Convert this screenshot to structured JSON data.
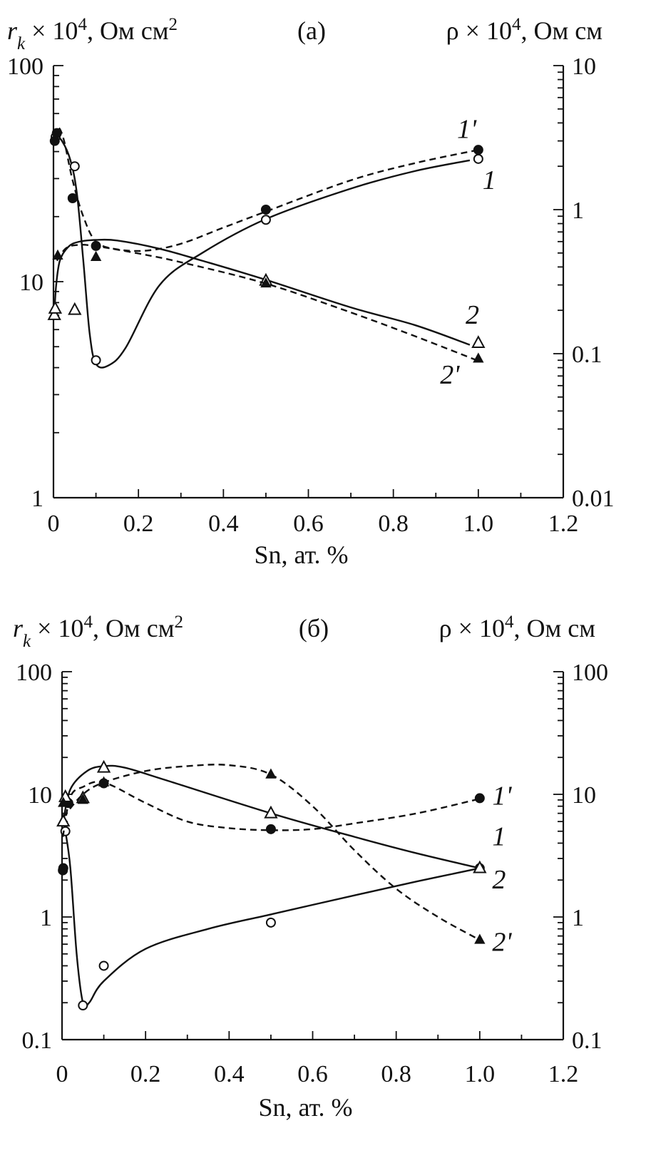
{
  "chart_data": [
    {
      "type": "scatter",
      "panel_label": "(а)",
      "ylabel_left": "r_k × 10^4, Ом см^2",
      "ylabel_right": "ρ × 10^4, Ом см",
      "xlabel": "Sn, ат. %",
      "xlim": [
        0,
        1.2
      ],
      "xticks": [
        "0",
        "0.2",
        "0.4",
        "0.6",
        "0.8",
        "1.0",
        "1.2"
      ],
      "ylim_left": [
        1,
        100
      ],
      "yscale_left": "log",
      "yticks_left": [
        "1",
        "10",
        "100"
      ],
      "ylim_right": [
        0.01,
        10
      ],
      "yscale_right": "log",
      "yticks_right": [
        "0.01",
        "0.1",
        "1",
        "10"
      ],
      "series": [
        {
          "name": "1",
          "label_text": "1",
          "label_at": [
            1.01,
            1.6
          ],
          "axis": "right",
          "marker": "open-circle",
          "line": "solid",
          "points": [
            [
              0.005,
              3.2
            ],
            [
              0.05,
              2.0
            ],
            [
              0.1,
              0.09
            ],
            [
              0.5,
              0.85
            ],
            [
              1.0,
              2.25
            ]
          ],
          "curve": [
            [
              0.003,
              3.3
            ],
            [
              0.02,
              3.0
            ],
            [
              0.04,
              2.2
            ],
            [
              0.055,
              1.3
            ],
            [
              0.07,
              0.45
            ],
            [
              0.085,
              0.14
            ],
            [
              0.1,
              0.085
            ],
            [
              0.13,
              0.083
            ],
            [
              0.17,
              0.11
            ],
            [
              0.25,
              0.3
            ],
            [
              0.35,
              0.5
            ],
            [
              0.5,
              0.86
            ],
            [
              0.7,
              1.4
            ],
            [
              0.85,
              1.85
            ],
            [
              0.98,
              2.2
            ]
          ]
        },
        {
          "name": "1'",
          "label_text": "1'",
          "label_at": [
            0.95,
            3.6
          ],
          "axis": "right",
          "marker": "filled-circle",
          "line": "dashed",
          "points": [
            [
              0.003,
              3.0
            ],
            [
              0.008,
              3.4
            ],
            [
              0.045,
              1.2
            ],
            [
              0.1,
              0.56
            ],
            [
              0.5,
              1.0
            ],
            [
              1.0,
              2.6
            ]
          ],
          "curve": [
            [
              0.003,
              3.2
            ],
            [
              0.012,
              3.7
            ],
            [
              0.025,
              3.0
            ],
            [
              0.045,
              1.6
            ],
            [
              0.07,
              0.9
            ],
            [
              0.1,
              0.6
            ],
            [
              0.15,
              0.53
            ],
            [
              0.22,
              0.52
            ],
            [
              0.3,
              0.58
            ],
            [
              0.4,
              0.75
            ],
            [
              0.5,
              0.97
            ],
            [
              0.7,
              1.6
            ],
            [
              0.85,
              2.1
            ],
            [
              1.0,
              2.6
            ]
          ]
        },
        {
          "name": "2",
          "label_text": "2",
          "label_at": [
            0.97,
            7.0
          ],
          "axis": "left",
          "marker": "open-triangle",
          "line": "solid",
          "points": [
            [
              0.002,
              7.0
            ],
            [
              0.004,
              7.5
            ],
            [
              0.05,
              7.4
            ],
            [
              0.5,
              10.1
            ],
            [
              1.0,
              5.2
            ]
          ],
          "curve": [
            [
              0.002,
              7.0
            ],
            [
              0.006,
              9.5
            ],
            [
              0.015,
              12.5
            ],
            [
              0.035,
              14.5
            ],
            [
              0.06,
              15.3
            ],
            [
              0.1,
              15.6
            ],
            [
              0.15,
              15.5
            ],
            [
              0.25,
              14.2
            ],
            [
              0.35,
              12.5
            ],
            [
              0.5,
              10.2
            ],
            [
              0.7,
              7.6
            ],
            [
              0.85,
              6.3
            ],
            [
              0.98,
              5.1
            ]
          ]
        },
        {
          "name": "2'",
          "label_text": "2'",
          "label_at": [
            0.91,
            3.7
          ],
          "axis": "left",
          "marker": "filled-triangle",
          "line": "dashed",
          "points": [
            [
              0.01,
              13.2
            ],
            [
              0.1,
              13.0
            ],
            [
              0.5,
              9.8
            ],
            [
              1.0,
              4.4
            ]
          ],
          "curve": [
            [
              0.008,
              12.5
            ],
            [
              0.03,
              14.3
            ],
            [
              0.06,
              14.8
            ],
            [
              0.1,
              14.6
            ],
            [
              0.2,
              13.5
            ],
            [
              0.3,
              12.3
            ],
            [
              0.5,
              9.8
            ],
            [
              0.7,
              7.2
            ],
            [
              0.85,
              5.6
            ],
            [
              1.0,
              4.3
            ]
          ]
        }
      ]
    },
    {
      "type": "scatter",
      "panel_label": "(б)",
      "ylabel_left": "r_k × 10^4, Ом см^2",
      "ylabel_right": "ρ × 10^4, Ом см",
      "xlabel": "Sn, ат. %",
      "xlim": [
        0,
        1.2
      ],
      "xticks": [
        "0",
        "0.2",
        "0.4",
        "0.6",
        "0.8",
        "1.0",
        "1.2"
      ],
      "ylim_left": [
        0.1,
        100
      ],
      "yscale_left": "log",
      "yticks_left": [
        "0.1",
        "1",
        "10",
        "100"
      ],
      "ylim_right": [
        0.1,
        100
      ],
      "yscale_right": "log",
      "yticks_right": [
        "0.1",
        "1",
        "10",
        "100"
      ],
      "series": [
        {
          "name": "1",
          "label_text": "1",
          "label_at": [
            1.03,
            4.5
          ],
          "axis": "right",
          "marker": "open-circle",
          "line": "solid",
          "points": [
            [
              0.008,
              5.0
            ],
            [
              0.05,
              0.19
            ],
            [
              0.1,
              0.4
            ],
            [
              0.5,
              0.9
            ],
            [
              1.0,
              2.5
            ]
          ],
          "curve": [
            [
              0.008,
              5.0
            ],
            [
              0.02,
              2.5
            ],
            [
              0.035,
              0.5
            ],
            [
              0.05,
              0.2
            ],
            [
              0.065,
              0.2
            ],
            [
              0.1,
              0.3
            ],
            [
              0.2,
              0.55
            ],
            [
              0.35,
              0.8
            ],
            [
              0.5,
              1.05
            ],
            [
              0.7,
              1.5
            ],
            [
              0.85,
              1.95
            ],
            [
              1.0,
              2.5
            ]
          ]
        },
        {
          "name": "1'",
          "label_text": "1'",
          "label_at": [
            1.03,
            9.7
          ],
          "axis": "right",
          "marker": "filled-circle",
          "line": "dashed",
          "points": [
            [
              0.002,
              2.4
            ],
            [
              0.003,
              2.5
            ],
            [
              0.01,
              8.8
            ],
            [
              0.015,
              8.5
            ],
            [
              0.1,
              12.3
            ],
            [
              0.5,
              5.2
            ],
            [
              1.0,
              9.3
            ]
          ],
          "curve": [
            [
              0.002,
              4.5
            ],
            [
              0.02,
              9.5
            ],
            [
              0.05,
              11.5
            ],
            [
              0.1,
              12.5
            ],
            [
              0.2,
              8.5
            ],
            [
              0.3,
              6.0
            ],
            [
              0.4,
              5.3
            ],
            [
              0.5,
              5.1
            ],
            [
              0.6,
              5.2
            ],
            [
              0.7,
              5.8
            ],
            [
              0.85,
              7.0
            ],
            [
              1.0,
              9.2
            ]
          ]
        },
        {
          "name": "2",
          "label_text": "2",
          "label_at": [
            1.03,
            2.0
          ],
          "axis": "left",
          "marker": "open-triangle",
          "line": "solid",
          "points": [
            [
              0.003,
              6.0
            ],
            [
              0.008,
              9.5
            ],
            [
              0.05,
              9.3
            ],
            [
              0.1,
              16.5
            ],
            [
              0.5,
              7.0
            ],
            [
              1.0,
              2.5
            ]
          ],
          "curve": [
            [
              0.003,
              6.0
            ],
            [
              0.02,
              11.0
            ],
            [
              0.06,
              15.5
            ],
            [
              0.1,
              17.0
            ],
            [
              0.15,
              16.5
            ],
            [
              0.25,
              13.0
            ],
            [
              0.5,
              7.0
            ],
            [
              0.7,
              4.5
            ],
            [
              0.85,
              3.3
            ],
            [
              1.0,
              2.5
            ]
          ]
        },
        {
          "name": "2'",
          "label_text": "2'",
          "label_at": [
            1.03,
            0.62
          ],
          "axis": "left",
          "marker": "filled-triangle",
          "line": "dashed",
          "points": [
            [
              0.003,
              8.5
            ],
            [
              0.05,
              9.0
            ],
            [
              0.1,
              12.5
            ],
            [
              0.5,
              14.5
            ],
            [
              1.0,
              0.65
            ]
          ],
          "curve": [
            [
              0.003,
              6.5
            ],
            [
              0.05,
              10.0
            ],
            [
              0.1,
              12.5
            ],
            [
              0.2,
              15.5
            ],
            [
              0.3,
              17.0
            ],
            [
              0.4,
              17.3
            ],
            [
              0.5,
              14.5
            ],
            [
              0.6,
              8.0
            ],
            [
              0.7,
              3.5
            ],
            [
              0.8,
              1.7
            ],
            [
              0.9,
              1.0
            ],
            [
              1.0,
              0.65
            ]
          ]
        }
      ]
    }
  ]
}
